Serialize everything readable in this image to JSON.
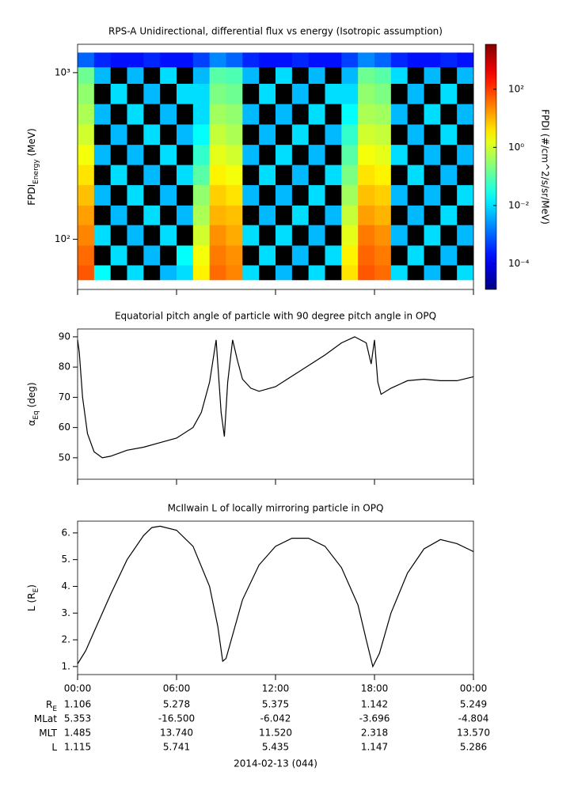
{
  "chart_data": [
    {
      "type": "heatmap",
      "title": "RPS-A Unidirectional, differential flux vs energy (Isotropic assumption)",
      "ylabel": [
        "FPDI",
        "Energy",
        " (MeV)"
      ],
      "zlabel": "FPDI (#/cm^2/s/sr/MeV)",
      "xlim": [
        0,
        24
      ],
      "ylim": [
        50,
        1480
      ],
      "ylog": true,
      "yticks": [
        {
          "value": 100,
          "label": "10²"
        },
        {
          "value": 1000,
          "label": "10³"
        }
      ],
      "zlim": [
        1.3e-05,
        3500
      ],
      "zlog": true,
      "zticks": [
        {
          "value": 0.0001,
          "label": "10⁻⁴"
        },
        {
          "value": 0.01,
          "label": "10⁻²"
        },
        {
          "value": 1,
          "label": "10⁰"
        },
        {
          "value": 100,
          "label": "10²"
        }
      ],
      "xbins": [
        0,
        1,
        2,
        3,
        4,
        5,
        6,
        7,
        8,
        9,
        10,
        11,
        12,
        13,
        14,
        15,
        16,
        17,
        18,
        19,
        20,
        21,
        22,
        23,
        24
      ],
      "ybins": [
        57,
        70,
        92,
        122,
        160,
        212,
        280,
        370,
        490,
        650,
        860,
        1080,
        1320
      ],
      "values": [
        [
          60,
          0.02,
          null,
          0.01,
          null,
          0.005,
          0.01,
          3,
          40,
          25,
          0.01,
          null,
          0.005,
          null,
          0.01,
          null,
          4,
          60,
          40,
          0.01,
          null,
          0.005,
          null,
          0.01
        ],
        [
          40,
          null,
          0.01,
          null,
          0.005,
          null,
          0.02,
          2,
          30,
          20,
          null,
          0.01,
          null,
          0.005,
          null,
          0.01,
          3,
          45,
          30,
          null,
          0.01,
          null,
          0.005,
          null
        ],
        [
          25,
          0.01,
          null,
          0.005,
          null,
          0.01,
          null,
          1,
          20,
          12,
          0.01,
          null,
          0.01,
          null,
          0.005,
          null,
          1.5,
          30,
          20,
          0.005,
          null,
          0.01,
          null,
          0.005
        ],
        [
          15,
          null,
          0.005,
          null,
          0.01,
          null,
          0.005,
          0.5,
          10,
          8,
          null,
          0.005,
          null,
          0.01,
          null,
          0.005,
          0.8,
          15,
          10,
          null,
          0.005,
          null,
          0.01,
          null
        ],
        [
          8,
          0.005,
          null,
          0.01,
          null,
          0.005,
          null,
          0.3,
          6,
          4,
          0.005,
          null,
          0.005,
          null,
          0.01,
          null,
          0.4,
          8,
          6,
          0.005,
          null,
          0.005,
          null,
          0.01
        ],
        [
          4,
          null,
          0.01,
          null,
          0.005,
          null,
          0.01,
          0.1,
          3,
          2,
          null,
          0.01,
          null,
          0.005,
          null,
          0.01,
          0.2,
          4,
          3,
          null,
          0.01,
          null,
          0.005,
          null
        ],
        [
          2,
          0.005,
          null,
          0.005,
          null,
          0.01,
          null,
          0.05,
          1.5,
          1,
          0.005,
          null,
          0.01,
          null,
          0.005,
          null,
          0.1,
          2,
          1.5,
          0.01,
          null,
          0.005,
          null,
          0.005
        ],
        [
          1,
          null,
          0.005,
          null,
          0.01,
          null,
          0.005,
          0.02,
          0.8,
          0.5,
          null,
          0.005,
          null,
          0.01,
          null,
          0.005,
          0.05,
          1,
          0.8,
          null,
          0.005,
          null,
          0.01,
          null
        ],
        [
          0.5,
          0.005,
          null,
          0.01,
          null,
          0.005,
          null,
          0.01,
          0.4,
          0.3,
          0.005,
          null,
          0.005,
          null,
          0.01,
          null,
          0.02,
          0.5,
          0.4,
          0.005,
          null,
          0.01,
          null,
          0.005
        ],
        [
          0.3,
          null,
          0.01,
          null,
          0.005,
          null,
          0.01,
          0.01,
          0.2,
          0.15,
          null,
          0.01,
          null,
          0.005,
          null,
          0.01,
          0.01,
          0.3,
          0.2,
          null,
          0.005,
          null,
          0.01,
          null
        ],
        [
          0.15,
          0.005,
          null,
          0.005,
          null,
          0.01,
          null,
          0.005,
          0.1,
          0.08,
          0.005,
          null,
          0.01,
          null,
          0.005,
          null,
          0.005,
          0.15,
          0.1,
          0.01,
          null,
          0.005,
          null,
          0.005
        ],
        [
          0.001,
          0.0003,
          0.0002,
          0.0002,
          0.0003,
          0.0002,
          0.0002,
          0.0005,
          0.002,
          0.001,
          0.0003,
          0.0002,
          0.0002,
          0.0003,
          0.0002,
          0.0002,
          0.0005,
          0.002,
          0.001,
          0.0003,
          0.0002,
          0.0002,
          0.0003,
          0.0002
        ]
      ]
    },
    {
      "type": "line",
      "title": "Equatorial pitch angle of particle with 90 degree pitch angle in OPQ",
      "ylabel": [
        "α",
        "Eq",
        " (deg)"
      ],
      "color": "#000000",
      "xlim": [
        0,
        24
      ],
      "ylim": [
        42.9,
        92.6
      ],
      "yticks": [
        50,
        60,
        70,
        80,
        90
      ],
      "x": [
        0,
        0.1,
        0.3,
        0.6,
        1,
        1.5,
        2,
        3,
        4,
        5,
        6,
        7,
        7.5,
        8,
        8.4,
        8.7,
        8.9,
        9.1,
        9.4,
        9.7,
        10,
        10.5,
        11,
        12,
        13,
        14,
        15,
        16,
        16.8,
        17.5,
        17.8,
        18,
        18.2,
        18.4,
        19,
        20,
        21,
        22,
        23,
        24
      ],
      "values": [
        89,
        85,
        70,
        58,
        52,
        50,
        50.5,
        52.5,
        53.5,
        55,
        56.5,
        60,
        65,
        75,
        89,
        65,
        57,
        75,
        89,
        82,
        76,
        73,
        72,
        73.5,
        77,
        80.5,
        84,
        88,
        90,
        88,
        81,
        89,
        75,
        71,
        73,
        75.5,
        76,
        75.5,
        75.5,
        76.8
      ]
    },
    {
      "type": "line",
      "title": "McIlwain L of locally mirroring particle in OPQ",
      "ylabel": [
        "L (R",
        "E",
        ")"
      ],
      "color": "#000000",
      "xlim": [
        0,
        24
      ],
      "ylim": [
        0.7,
        6.44
      ],
      "yticks": [
        {
          "value": 1,
          "label": "1."
        },
        {
          "value": 2,
          "label": "2."
        },
        {
          "value": 3,
          "label": "3."
        },
        {
          "value": 4,
          "label": "4."
        },
        {
          "value": 5,
          "label": "5."
        },
        {
          "value": 6,
          "label": "6."
        }
      ],
      "xticks": [
        {
          "value": 0,
          "label": "00:00"
        },
        {
          "value": 6,
          "label": "06:00"
        },
        {
          "value": 12,
          "label": "12:00"
        },
        {
          "value": 18,
          "label": "18:00"
        },
        {
          "value": 24,
          "label": "00:00"
        }
      ],
      "x": [
        0,
        0.5,
        1,
        2,
        3,
        4,
        4.5,
        5,
        6,
        7,
        8,
        8.5,
        8.8,
        9,
        9.5,
        10,
        11,
        12,
        13,
        14,
        15,
        16,
        17,
        17.5,
        17.9,
        18.3,
        19,
        20,
        21,
        22,
        23,
        24
      ],
      "values": [
        1.1,
        1.6,
        2.3,
        3.7,
        5.0,
        5.9,
        6.2,
        6.25,
        6.1,
        5.5,
        4.0,
        2.5,
        1.2,
        1.3,
        2.4,
        3.5,
        4.8,
        5.5,
        5.8,
        5.8,
        5.5,
        4.7,
        3.3,
        2.0,
        1.0,
        1.5,
        3.0,
        4.5,
        5.4,
        5.75,
        5.6,
        5.3
      ]
    }
  ],
  "ephemeris": {
    "rows": [
      {
        "label": [
          "R",
          "E"
        ],
        "values": [
          "1.106",
          "5.278",
          "5.375",
          "1.142",
          "5.249"
        ]
      },
      {
        "label": [
          "MLat"
        ],
        "values": [
          "5.353",
          "-16.500",
          "-6.042",
          "-3.696",
          "-4.804"
        ]
      },
      {
        "label": [
          "MLT"
        ],
        "values": [
          "1.485",
          "13.740",
          "11.520",
          "2.318",
          "13.570"
        ]
      },
      {
        "label": [
          "L"
        ],
        "values": [
          "1.115",
          "5.741",
          "5.435",
          "1.147",
          "5.286"
        ]
      }
    ],
    "date": "2014-02-13 (044)"
  }
}
